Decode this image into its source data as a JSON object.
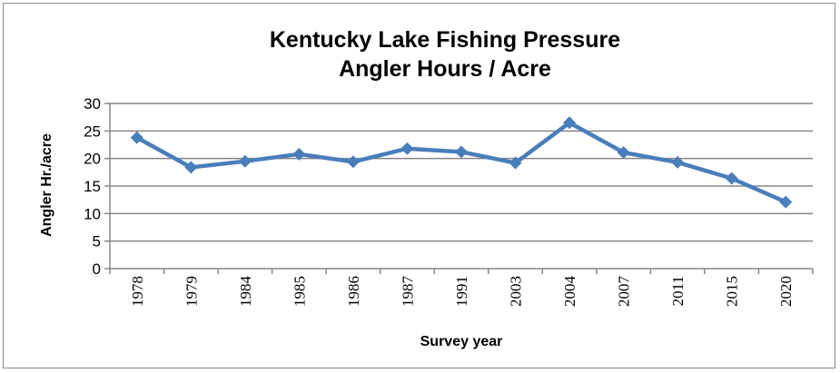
{
  "chart_data": {
    "type": "line",
    "title": [
      "Kentucky Lake Fishing Pressure",
      "Angler Hours / Acre"
    ],
    "xlabel": "Survey year",
    "ylabel": "Angler Hr./acre",
    "categories": [
      "1978",
      "1979",
      "1984",
      "1985",
      "1986",
      "1987",
      "1991",
      "2003",
      "2004",
      "2007",
      "2011",
      "2015",
      "2020"
    ],
    "series": [
      {
        "values": [
          23.8,
          18.4,
          19.5,
          20.8,
          19.4,
          21.8,
          21.2,
          19.2,
          26.5,
          21.1,
          19.3,
          16.4,
          12.1
        ]
      }
    ],
    "ylim": [
      0,
      30
    ],
    "yticks": [
      "0",
      "5",
      "10",
      "15",
      "20",
      "25",
      "30"
    ],
    "grid": true,
    "legend": "none",
    "colors": {
      "series": "#4a7ebb",
      "grid": "#868686"
    }
  }
}
